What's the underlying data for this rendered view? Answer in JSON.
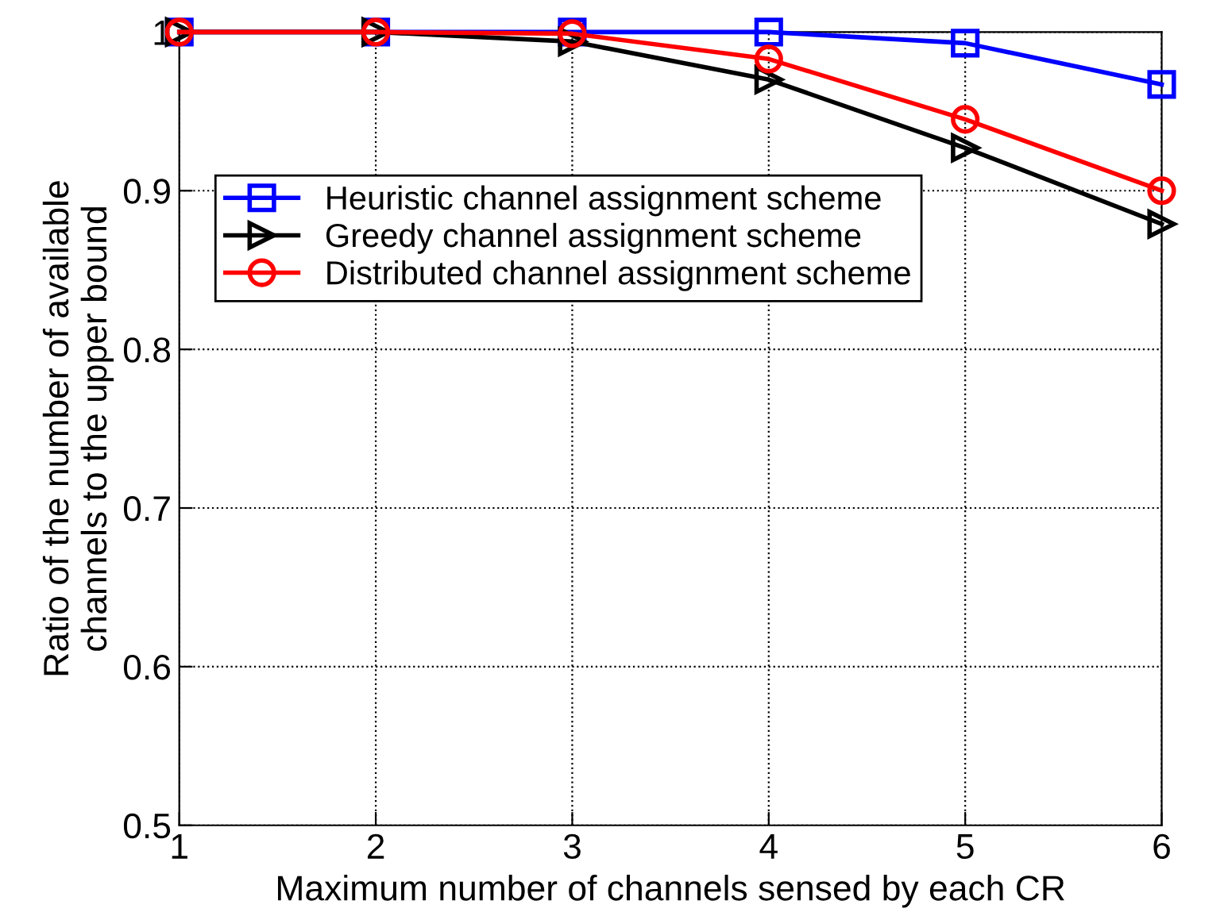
{
  "chart_data": {
    "type": "line",
    "xlabel": "Maximum number of channels sensed by each CR",
    "ylabel": "Ratio of the number of available\nchannels to the upper bound",
    "x": [
      1,
      2,
      3,
      4,
      5,
      6
    ],
    "series": [
      {
        "name": "Heuristic channel assignment scheme",
        "color": "#0000ff",
        "marker": "square",
        "values": [
          1.0,
          1.0,
          1.0,
          1.0,
          0.993,
          0.967
        ]
      },
      {
        "name": "Greedy channel assignment scheme",
        "color": "#000000",
        "marker": "triangle",
        "values": [
          1.0,
          1.0,
          0.994,
          0.97,
          0.927,
          0.879
        ]
      },
      {
        "name": "Distributed channel assignment scheme",
        "color": "#ff0000",
        "marker": "circle",
        "values": [
          1.0,
          1.0,
          0.999,
          0.983,
          0.945,
          0.9
        ]
      }
    ],
    "xlim": [
      1,
      6
    ],
    "ylim": [
      0.5,
      1
    ],
    "xticks": [
      1,
      2,
      3,
      4,
      5,
      6
    ],
    "yticks": [
      {
        "value": 0.5,
        "label": "0.5"
      },
      {
        "value": 0.6,
        "label": "0.6"
      },
      {
        "value": 0.7,
        "label": "0.7"
      },
      {
        "value": 0.8,
        "label": "0.8"
      },
      {
        "value": 0.9,
        "label": "0.9"
      },
      {
        "value": 1,
        "label": "1"
      }
    ],
    "grid": true,
    "legend": "top left",
    "line_style": "solid"
  }
}
